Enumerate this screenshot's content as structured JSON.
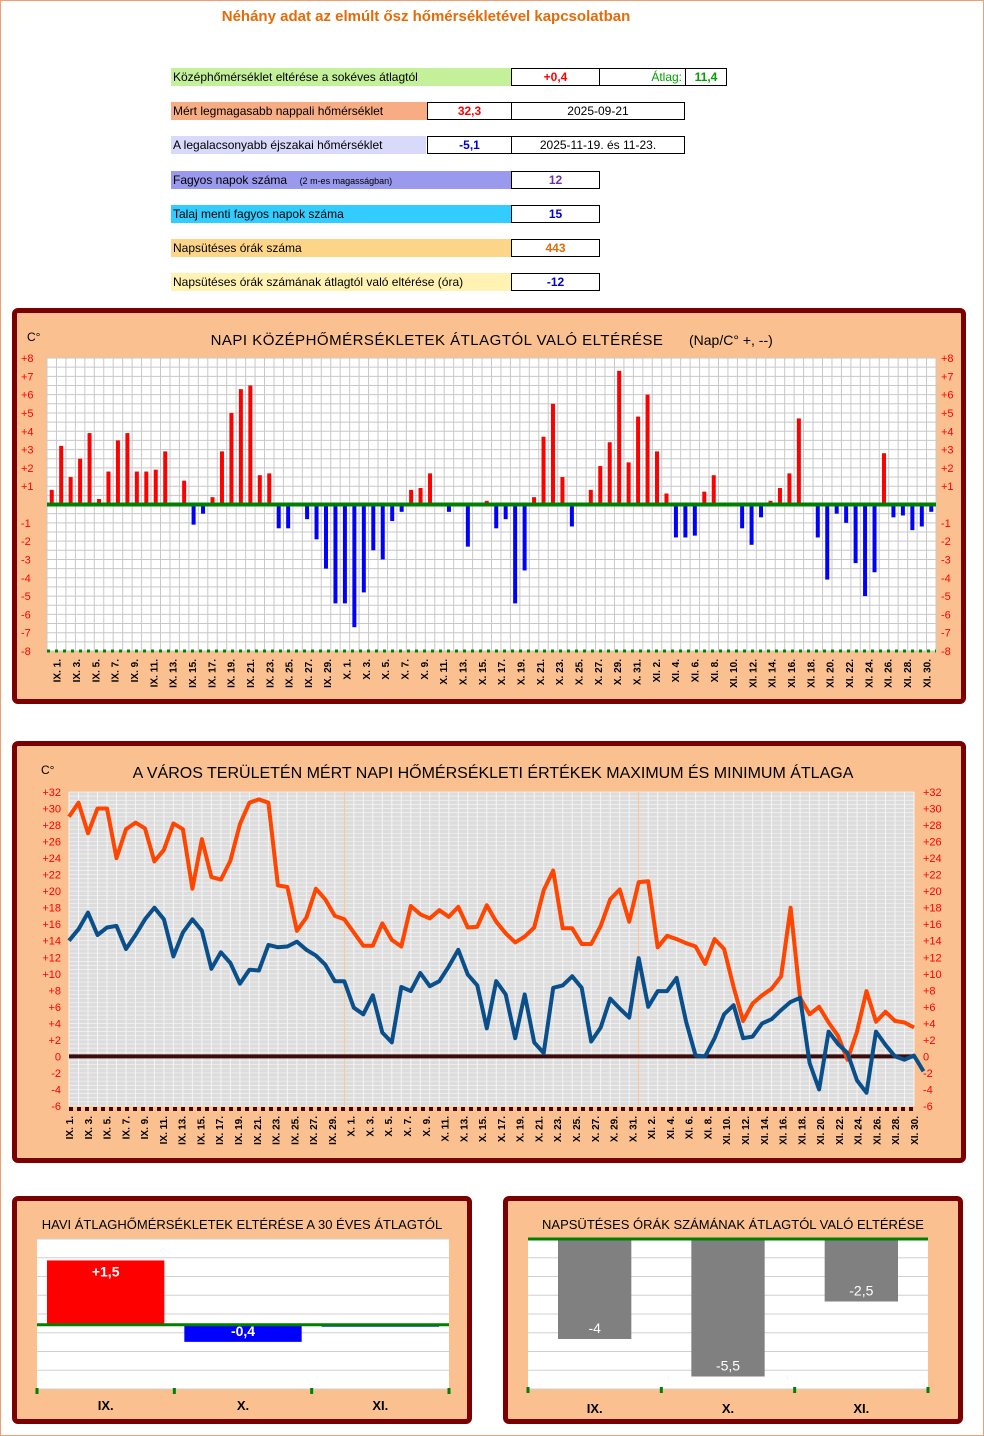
{
  "header": {
    "title": "Néhány adat az elmúlt ősz hőmérsékletével kapcsolatban"
  },
  "summary": {
    "rows": [
      {
        "label": "Középhőmérséklet eltérése a sokéves átlagtól",
        "value": "+0,4",
        "extra_label": "Átlag:",
        "extra_value": "11,4",
        "color": "#c5f09a"
      },
      {
        "label": "Mért legmagasabb nappali hőmérséklet",
        "value": "32,3",
        "date": "2025-09-21",
        "color": "#f7ac84"
      },
      {
        "label": "A legalacsonyabb éjszakai hőmérséklet",
        "value": "-5,1",
        "date": "2025-11-19.  és 11-23.",
        "color": "#d9d9fc"
      },
      {
        "label": "Fagyos napok száma",
        "note": "(2 m-es magasságban)",
        "value": "12",
        "color": "#9999ee"
      },
      {
        "label": "Talaj menti fagyos napok száma",
        "value": "15",
        "color": "#33ccff"
      },
      {
        "label": "Napsütéses órák száma",
        "value": "443",
        "color": "#fcd589"
      },
      {
        "label": "Napsütéses órák számának átlagtól való eltérése  (óra)",
        "value": "-12",
        "color": "#fff2b3"
      }
    ]
  },
  "chart1": {
    "title": "NAPI  KÖZÉPHŐMÉRSÉKLETEK  ÁTLAGTÓL  VALÓ  ELTÉRÉSE",
    "title_note": "(Nap/C°  +, --)",
    "unit": "C°"
  },
  "chart2": {
    "title": "A VÁROS TERÜLETÉN MÉRT NAPI HŐMÉRSÉKLETI ÉRTÉKEK MAXIMUM ÉS MINIMUM ÁTLAGA",
    "unit": "C°"
  },
  "chart3": {
    "title": "HAVI ÁTLAGHŐMÉRSÉKLETEK ELTÉRÉSE A 30 ÉVES  ÁTLAGTÓL"
  },
  "chart4": {
    "title": "NAPSÜTÉSES ÓRÁK SZÁMÁNAK ÁTLAGTÓL VALÓ ELTÉRÉSE"
  },
  "chart_data": [
    {
      "type": "bar",
      "ylim": [
        -8,
        8
      ],
      "y_ticks": [
        "+8",
        "+7",
        "+6",
        "+5",
        "+4",
        "+3",
        "+2",
        "+1",
        "-1",
        "-2",
        "-3",
        "-4",
        "-5",
        "-6",
        "-7",
        "-8"
      ],
      "x_labels": [
        "IX. 1.",
        "IX. 3.",
        "IX. 5.",
        "IX. 7.",
        "IX. 9.",
        "IX. 11.",
        "IX. 13.",
        "IX. 15.",
        "IX. 17.",
        "IX. 19.",
        "IX. 21.",
        "IX. 23.",
        "IX. 25.",
        "IX. 27.",
        "IX. 29.",
        "X. 1.",
        "X. 3.",
        "X. 5.",
        "X. 7.",
        "X. 9.",
        "X. 11.",
        "X. 13.",
        "X. 15.",
        "X. 17.",
        "X. 19.",
        "X. 21.",
        "X. 23.",
        "X. 25.",
        "X. 27.",
        "X. 29.",
        "X. 31.",
        "XI. 2.",
        "XI. 4.",
        "XI. 6.",
        "XI. 8.",
        "XI. 10.",
        "XI. 12.",
        "XI. 14.",
        "XI. 16.",
        "XI. 18.",
        "XI. 20.",
        "XI. 22.",
        "XI. 24.",
        "XI. 26.",
        "XI. 28.",
        "XI. 30."
      ],
      "values": [
        0.8,
        3.2,
        1.5,
        2.5,
        3.9,
        0.3,
        1.8,
        3.5,
        3.9,
        1.8,
        1.8,
        1.9,
        2.9,
        0,
        1.3,
        -1.1,
        -0.5,
        0.4,
        2.9,
        5.0,
        6.3,
        6.5,
        1.6,
        1.7,
        -1.3,
        -1.3,
        0,
        -0.8,
        -1.9,
        -3.5,
        -5.4,
        -5.4,
        -6.7,
        -4.8,
        -2.5,
        -3.0,
        -0.9,
        -0.4,
        0.8,
        0.9,
        1.7,
        0,
        -0.4,
        0,
        -2.3,
        0,
        0.2,
        -1.3,
        -0.8,
        -5.4,
        -3.6,
        0.4,
        3.7,
        5.5,
        1.5,
        -1.2,
        0,
        0.8,
        2.1,
        3.4,
        7.3,
        2.3,
        4.8,
        6.0,
        2.9,
        0.6,
        -1.8,
        -1.8,
        -1.7,
        0.7,
        1.6,
        0,
        0,
        -1.3,
        -2.2,
        -0.7,
        0.2,
        0.9,
        1.7,
        4.7,
        0,
        -1.8,
        -4.1,
        -0.5,
        -1.0,
        -3.2,
        -5.0,
        -3.7,
        2.8,
        -0.7,
        -0.6,
        -1.4,
        -1.2,
        -0.4
      ]
    },
    {
      "type": "line",
      "ylim": [
        -6,
        32
      ],
      "y_ticks": [
        "+32",
        "+30",
        "+28",
        "+26",
        "+24",
        "+22",
        "+20",
        "+18",
        "+16",
        "+14",
        "+12",
        "+10",
        "+8",
        "+6",
        "+4",
        "+2",
        "0",
        "-2",
        "-4",
        "-6"
      ],
      "x_labels": [
        "IX. 1.",
        "IX. 3.",
        "IX. 5.",
        "IX. 7.",
        "IX. 9.",
        "IX. 11.",
        "IX. 13.",
        "IX. 15.",
        "IX. 17.",
        "IX. 19.",
        "IX. 21.",
        "IX. 23.",
        "IX. 25.",
        "IX. 27.",
        "IX. 29.",
        "X. 1.",
        "X. 3.",
        "X. 5.",
        "X. 7.",
        "X. 9.",
        "X. 11.",
        "X. 13.",
        "X. 15.",
        "X. 17.",
        "X. 19.",
        "X. 21.",
        "X. 23.",
        "X. 25.",
        "X. 27.",
        "X. 29.",
        "X. 31.",
        "XI. 2.",
        "XI. 4.",
        "XI. 6.",
        "XI. 8.",
        "XI. 10.",
        "XI. 12.",
        "XI. 14.",
        "XI. 16.",
        "XI. 18.",
        "XI. 20.",
        "XI. 22.",
        "XI. 24.",
        "XI. 26.",
        "XI. 28.",
        "XI. 30."
      ],
      "series": [
        {
          "name": "max",
          "color": "#ff4500",
          "values": [
            29,
            30.7,
            27,
            30,
            30,
            24,
            27.5,
            28.3,
            27.6,
            23.6,
            25,
            28.2,
            27.5,
            20.3,
            26.3,
            21.7,
            21.4,
            23.7,
            28.1,
            30.7,
            31.1,
            30.7,
            20.7,
            20.5,
            15.2,
            16.8,
            20.3,
            19,
            17,
            16.6,
            15,
            13.4,
            13.4,
            16.1,
            14.1,
            13.3,
            18.2,
            17.2,
            16.7,
            17.7,
            16.9,
            18.1,
            15.6,
            15.7,
            18.3,
            16.3,
            14.9,
            13.8,
            14.5,
            15.6,
            20.1,
            22.5,
            15.5,
            15.5,
            13.6,
            13.6,
            15.8,
            19,
            20.2,
            16.3,
            21.1,
            21.2,
            13.2,
            14.6,
            14.2,
            13.7,
            13.3,
            11.2,
            14.2,
            13,
            8.4,
            4.3,
            6.4,
            7.4,
            8.2,
            9.7,
            18,
            7.1,
            5.1,
            6,
            4.1,
            2.5,
            -0.4,
            3,
            7.9,
            4.2,
            5.4,
            4.3,
            4.1,
            3.5
          ]
        },
        {
          "name": "min",
          "color": "#0a4f8a",
          "values": [
            14,
            15.4,
            17.4,
            14.7,
            15.6,
            15.8,
            13,
            14.7,
            16.6,
            18,
            16.6,
            12.1,
            15,
            16.6,
            15.2,
            10.6,
            12.6,
            11.3,
            8.8,
            10.5,
            10.4,
            13.5,
            13.2,
            13.3,
            13.9,
            12.9,
            12.2,
            11.1,
            9.1,
            9.1,
            5.9,
            5.1,
            7.4,
            2.9,
            1.7,
            8.4,
            7.9,
            10.1,
            8.5,
            9.1,
            10.9,
            12.9,
            9.9,
            8.6,
            3.4,
            9.1,
            7.5,
            2.2,
            7.5,
            1.7,
            0.4,
            8.3,
            8.6,
            9.7,
            8.3,
            1.8,
            3.5,
            7,
            5.8,
            4.7,
            11.9,
            6,
            7.9,
            7.9,
            9.5,
            4.2,
            0.1,
            0,
            2.2,
            5.1,
            6.2,
            2.2,
            2.4,
            4,
            4.5,
            5.6,
            6.6,
            7.1,
            -0.8,
            -4,
            3,
            1.5,
            0.4,
            -2.9,
            -4.4,
            3,
            1.4,
            0,
            -0.4,
            0.1,
            -1.8
          ]
        }
      ]
    },
    {
      "type": "bar",
      "categories": [
        "IX.",
        "X.",
        "XI."
      ],
      "values": [
        1.5,
        -0.4,
        0
      ],
      "data_labels": [
        "+1,5",
        "-0,4",
        ""
      ],
      "colors": [
        "#ff0000",
        "#0000ff",
        "#0000ff"
      ],
      "ylim": [
        -1.5,
        2
      ]
    },
    {
      "type": "bar",
      "categories": [
        "IX.",
        "X.",
        "XI."
      ],
      "values": [
        -4,
        -5.5,
        -2.5
      ],
      "data_labels": [
        "-4",
        "-5,5",
        "-2,5"
      ],
      "colors": [
        "#808080",
        "#808080",
        "#808080"
      ],
      "ylim": [
        -6,
        0
      ]
    }
  ]
}
